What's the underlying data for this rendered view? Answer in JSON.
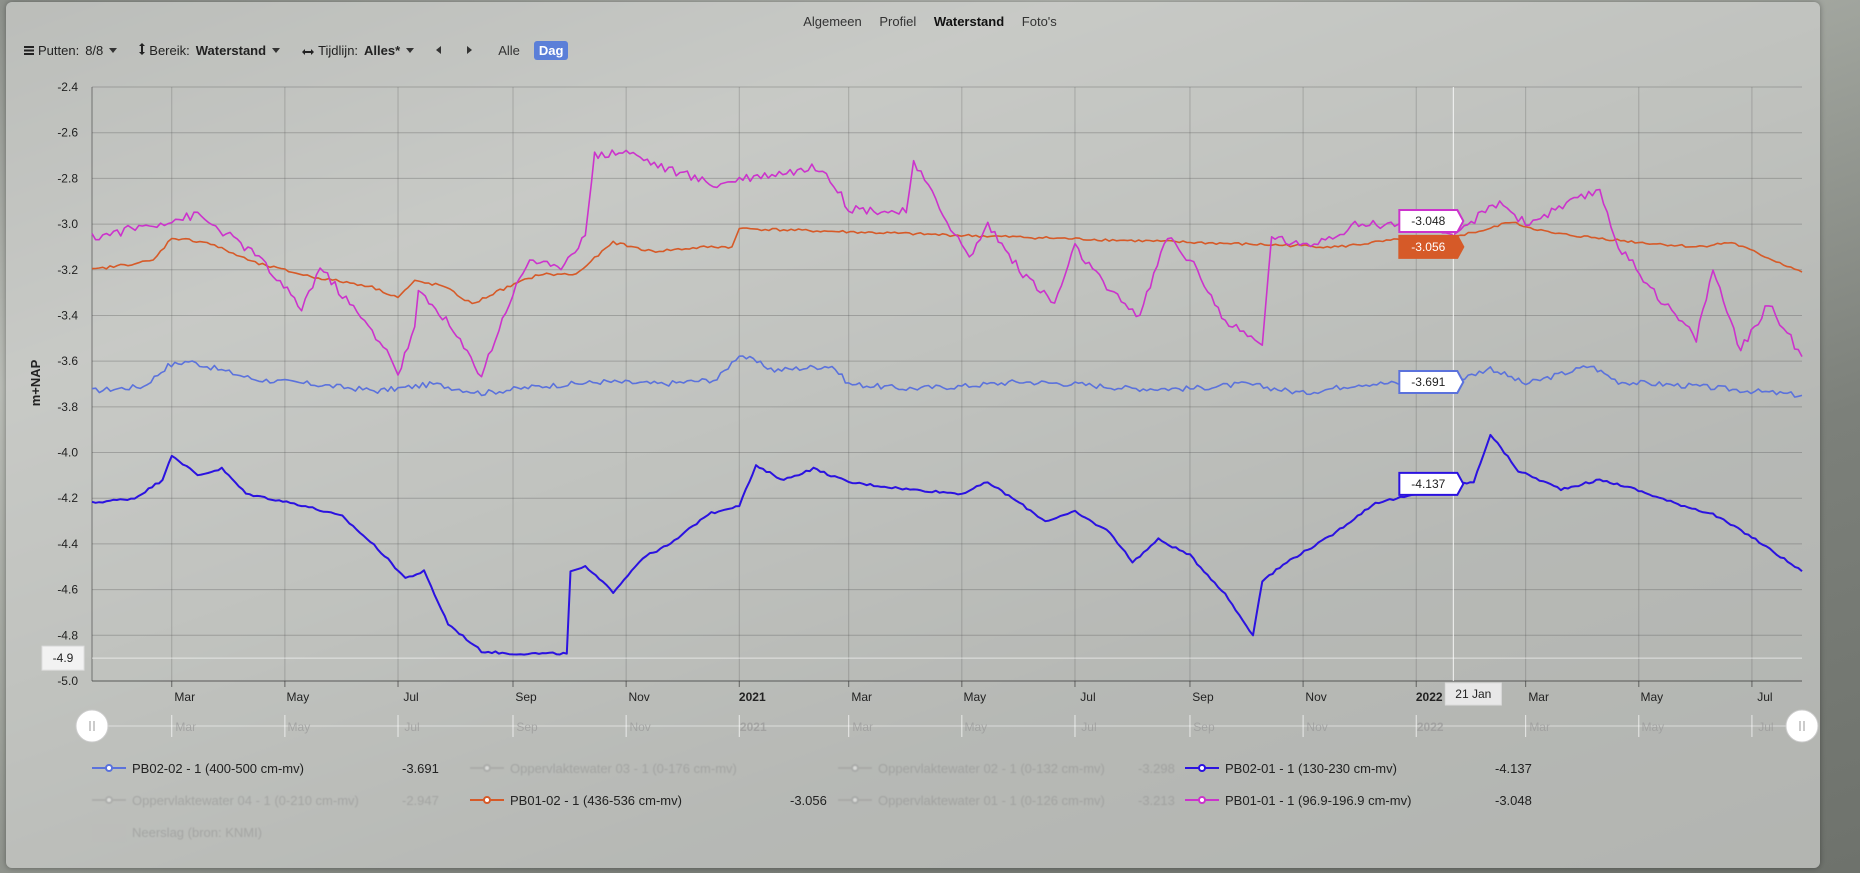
{
  "tabs": [
    {
      "label": "Algemeen",
      "active": false
    },
    {
      "label": "Profiel",
      "active": false
    },
    {
      "label": "Waterstand",
      "active": true
    },
    {
      "label": "Foto's",
      "active": false
    }
  ],
  "toolbar": {
    "putten_label": "Putten:",
    "putten_value": "8/8",
    "bereik_label": "Bereik:",
    "bereik_value": "Waterstand",
    "tijdlijn_label": "Tijdlijn:",
    "tijdlijn_value": "Alles*",
    "alle_label": "Alle",
    "dag_label": "Dag"
  },
  "chart_data": {
    "type": "line",
    "ylabel": "m+NAP",
    "ylim": [
      -5.0,
      -2.4
    ],
    "yticks": [
      -2.4,
      -2.6,
      -2.8,
      -3.0,
      -3.2,
      -3.4,
      -3.6,
      -3.8,
      -4.0,
      -4.2,
      -4.4,
      -4.6,
      -4.8,
      -5.0
    ],
    "x_range": [
      "2020-01-18",
      "2022-07-28"
    ],
    "xticks": [
      {
        "date": "2020-03-01",
        "label": "Mar",
        "bold": false
      },
      {
        "date": "2020-05-01",
        "label": "May",
        "bold": false
      },
      {
        "date": "2020-07-01",
        "label": "Jul",
        "bold": false
      },
      {
        "date": "2020-09-01",
        "label": "Sep",
        "bold": false
      },
      {
        "date": "2020-11-01",
        "label": "Nov",
        "bold": false
      },
      {
        "date": "2021-01-01",
        "label": "2021",
        "bold": true
      },
      {
        "date": "2021-03-01",
        "label": "Mar",
        "bold": false
      },
      {
        "date": "2021-05-01",
        "label": "May",
        "bold": false
      },
      {
        "date": "2021-07-01",
        "label": "Jul",
        "bold": false
      },
      {
        "date": "2021-09-01",
        "label": "Sep",
        "bold": false
      },
      {
        "date": "2021-11-01",
        "label": "Nov",
        "bold": false
      },
      {
        "date": "2022-01-01",
        "label": "2022",
        "bold": true
      },
      {
        "date": "2022-03-01",
        "label": "Mar",
        "bold": false
      },
      {
        "date": "2022-05-01",
        "label": "May",
        "bold": false
      },
      {
        "date": "2022-07-01",
        "label": "Jul",
        "bold": false
      }
    ],
    "crosshair": {
      "date": "2022-01-21",
      "label": "21 Jan",
      "y_label": "-4.9",
      "y_value": -4.9
    },
    "grid": true,
    "series": [
      {
        "name": "PB02-02 - 1 (400-500 cm-mv)",
        "color": "#5b72dc",
        "value_label": "-3.691",
        "hover_value": -3.691,
        "noise": 0.012,
        "points": [
          [
            "2020-01-18",
            -3.73
          ],
          [
            "2020-02-15",
            -3.71
          ],
          [
            "2020-02-28",
            -3.62
          ],
          [
            "2020-03-10",
            -3.6
          ],
          [
            "2020-04-15",
            -3.68
          ],
          [
            "2020-05-15",
            -3.7
          ],
          [
            "2020-06-20",
            -3.73
          ],
          [
            "2020-07-01",
            -3.72
          ],
          [
            "2020-07-20",
            -3.7
          ],
          [
            "2020-08-15",
            -3.74
          ],
          [
            "2020-09-15",
            -3.71
          ],
          [
            "2020-10-20",
            -3.69
          ],
          [
            "2020-11-20",
            -3.7
          ],
          [
            "2020-12-20",
            -3.68
          ],
          [
            "2021-01-01",
            -3.57
          ],
          [
            "2021-01-20",
            -3.64
          ],
          [
            "2021-02-20",
            -3.62
          ],
          [
            "2021-03-01",
            -3.7
          ],
          [
            "2021-04-01",
            -3.72
          ],
          [
            "2021-05-01",
            -3.71
          ],
          [
            "2021-06-01",
            -3.69
          ],
          [
            "2021-07-01",
            -3.7
          ],
          [
            "2021-08-01",
            -3.72
          ],
          [
            "2021-09-01",
            -3.72
          ],
          [
            "2021-10-01",
            -3.7
          ],
          [
            "2021-11-01",
            -3.74
          ],
          [
            "2021-12-01",
            -3.7
          ],
          [
            "2022-01-21",
            -3.691
          ],
          [
            "2022-02-10",
            -3.63
          ],
          [
            "2022-03-01",
            -3.7
          ],
          [
            "2022-04-05",
            -3.62
          ],
          [
            "2022-04-20",
            -3.69
          ],
          [
            "2022-06-01",
            -3.71
          ],
          [
            "2022-07-28",
            -3.75
          ]
        ]
      },
      {
        "name": "PB02-01 - 1 (130-230 cm-mv)",
        "color": "#2b12e0",
        "value_label": "-4.137",
        "hover_value": -4.137,
        "noise": 0.005,
        "points": [
          [
            "2020-01-18",
            -4.22
          ],
          [
            "2020-02-10",
            -4.2
          ],
          [
            "2020-02-25",
            -4.12
          ],
          [
            "2020-03-01",
            -4.01
          ],
          [
            "2020-03-15",
            -4.1
          ],
          [
            "2020-03-28",
            -4.07
          ],
          [
            "2020-04-10",
            -4.18
          ],
          [
            "2020-05-10",
            -4.23
          ],
          [
            "2020-06-01",
            -4.28
          ],
          [
            "2020-06-20",
            -4.42
          ],
          [
            "2020-07-05",
            -4.55
          ],
          [
            "2020-07-15",
            -4.52
          ],
          [
            "2020-07-28",
            -4.75
          ],
          [
            "2020-08-15",
            -4.87
          ],
          [
            "2020-08-30",
            -4.88
          ],
          [
            "2020-09-15",
            -4.88
          ],
          [
            "2020-09-30",
            -4.88
          ],
          [
            "2020-10-02",
            -4.52
          ],
          [
            "2020-10-10",
            -4.5
          ],
          [
            "2020-10-25",
            -4.61
          ],
          [
            "2020-11-10",
            -4.46
          ],
          [
            "2020-11-25",
            -4.4
          ],
          [
            "2020-12-15",
            -4.27
          ],
          [
            "2021-01-01",
            -4.23
          ],
          [
            "2021-01-10",
            -4.06
          ],
          [
            "2021-01-25",
            -4.12
          ],
          [
            "2021-02-10",
            -4.07
          ],
          [
            "2021-03-01",
            -4.13
          ],
          [
            "2021-04-01",
            -4.16
          ],
          [
            "2021-05-01",
            -4.18
          ],
          [
            "2021-05-15",
            -4.13
          ],
          [
            "2021-06-01",
            -4.22
          ],
          [
            "2021-06-15",
            -4.3
          ],
          [
            "2021-07-01",
            -4.26
          ],
          [
            "2021-07-20",
            -4.35
          ],
          [
            "2021-08-01",
            -4.48
          ],
          [
            "2021-08-15",
            -4.38
          ],
          [
            "2021-09-01",
            -4.45
          ],
          [
            "2021-09-20",
            -4.62
          ],
          [
            "2021-10-05",
            -4.8
          ],
          [
            "2021-10-10",
            -4.56
          ],
          [
            "2021-10-25",
            -4.47
          ],
          [
            "2021-11-15",
            -4.37
          ],
          [
            "2021-12-10",
            -4.22
          ],
          [
            "2022-01-10",
            -4.17
          ],
          [
            "2022-01-21",
            -4.137
          ],
          [
            "2022-02-01",
            -4.13
          ],
          [
            "2022-02-10",
            -3.92
          ],
          [
            "2022-02-25",
            -4.08
          ],
          [
            "2022-03-20",
            -4.16
          ],
          [
            "2022-04-10",
            -4.12
          ],
          [
            "2022-04-25",
            -4.15
          ],
          [
            "2022-05-20",
            -4.22
          ],
          [
            "2022-06-10",
            -4.27
          ],
          [
            "2022-07-01",
            -4.37
          ],
          [
            "2022-07-28",
            -4.52
          ]
        ]
      },
      {
        "name": "PB01-02 - 1 (436-536 cm-mv)",
        "color": "#d65a28",
        "value_label": "-3.056",
        "hover_value": -3.056,
        "noise": 0.006,
        "points": [
          [
            "2020-01-18",
            -3.2
          ],
          [
            "2020-02-20",
            -3.16
          ],
          [
            "2020-03-01",
            -3.06
          ],
          [
            "2020-03-20",
            -3.08
          ],
          [
            "2020-04-15",
            -3.17
          ],
          [
            "2020-05-15",
            -3.23
          ],
          [
            "2020-06-15",
            -3.27
          ],
          [
            "2020-07-01",
            -3.32
          ],
          [
            "2020-07-10",
            -3.25
          ],
          [
            "2020-07-25",
            -3.27
          ],
          [
            "2020-08-10",
            -3.35
          ],
          [
            "2020-08-25",
            -3.29
          ],
          [
            "2020-09-15",
            -3.22
          ],
          [
            "2020-10-05",
            -3.22
          ],
          [
            "2020-10-25",
            -3.08
          ],
          [
            "2020-11-15",
            -3.12
          ],
          [
            "2020-12-15",
            -3.1
          ],
          [
            "2020-12-28",
            -3.1
          ],
          [
            "2021-01-01",
            -3.02
          ],
          [
            "2021-01-03",
            -3.02
          ],
          [
            "2021-11-20",
            -3.1
          ],
          [
            "2021-12-10",
            -3.08
          ],
          [
            "2022-01-01",
            -3.06
          ],
          [
            "2022-01-21",
            -3.056
          ],
          [
            "2022-02-10",
            -3.02
          ],
          [
            "2022-02-20",
            -2.99
          ],
          [
            "2022-03-15",
            -3.04
          ],
          [
            "2022-05-01",
            -3.08
          ],
          [
            "2022-06-01",
            -3.1
          ],
          [
            "2022-06-20",
            -3.08
          ],
          [
            "2022-07-28",
            -3.21
          ]
        ]
      },
      {
        "name": "PB01-01 - 1 (96.9-196.9 cm-mv)",
        "color": "#cc33cc",
        "value_label": "-3.048",
        "hover_value": -3.048,
        "noise": 0.02,
        "points": [
          [
            "2020-01-18",
            -3.06
          ],
          [
            "2020-02-20",
            -3.0
          ],
          [
            "2020-03-15",
            -2.96
          ],
          [
            "2020-04-15",
            -3.13
          ],
          [
            "2020-05-10",
            -3.37
          ],
          [
            "2020-05-20",
            -3.19
          ],
          [
            "2020-06-25",
            -3.55
          ],
          [
            "2020-07-01",
            -3.66
          ],
          [
            "2020-07-10",
            -3.45
          ],
          [
            "2020-07-12",
            -3.3
          ],
          [
            "2020-07-25",
            -3.4
          ],
          [
            "2020-08-15",
            -3.66
          ],
          [
            "2020-08-30",
            -3.34
          ],
          [
            "2020-09-10",
            -3.15
          ],
          [
            "2020-09-25",
            -3.2
          ],
          [
            "2020-10-10",
            -3.05
          ],
          [
            "2020-10-15",
            -2.7
          ],
          [
            "2020-11-01",
            -2.68
          ],
          [
            "2020-11-20",
            -2.75
          ],
          [
            "2020-12-20",
            -2.83
          ],
          [
            "2021-01-01",
            -2.8
          ],
          [
            "2021-02-15",
            -2.75
          ],
          [
            "2021-03-01",
            -2.93
          ],
          [
            "2021-04-01",
            -2.95
          ],
          [
            "2021-04-05",
            -2.73
          ],
          [
            "2021-05-05",
            -3.15
          ],
          [
            "2021-05-15",
            -3.0
          ],
          [
            "2021-06-01",
            -3.2
          ],
          [
            "2021-06-20",
            -3.35
          ],
          [
            "2021-07-01",
            -3.1
          ],
          [
            "2021-07-20",
            -3.3
          ],
          [
            "2021-08-05",
            -3.4
          ],
          [
            "2021-08-20",
            -3.05
          ],
          [
            "2021-09-05",
            -3.2
          ],
          [
            "2021-09-20",
            -3.43
          ],
          [
            "2021-10-10",
            -3.53
          ],
          [
            "2021-10-15",
            -3.05
          ],
          [
            "2021-11-01",
            -3.1
          ],
          [
            "2021-12-01",
            -3.0
          ],
          [
            "2022-01-01",
            -3.0
          ],
          [
            "2022-01-21",
            -3.048
          ],
          [
            "2022-02-15",
            -2.9
          ],
          [
            "2022-03-01",
            -3.0
          ],
          [
            "2022-04-10",
            -2.85
          ],
          [
            "2022-04-20",
            -3.1
          ],
          [
            "2022-05-15",
            -3.35
          ],
          [
            "2022-06-01",
            -3.5
          ],
          [
            "2022-06-10",
            -3.2
          ],
          [
            "2022-06-25",
            -3.55
          ],
          [
            "2022-07-10",
            -3.35
          ],
          [
            "2022-07-28",
            -3.58
          ]
        ]
      }
    ],
    "legend": [
      {
        "name": "PB02-02 - 1 (400-500 cm-mv)",
        "value": "-3.691",
        "color": "#5b72dc",
        "faded": false
      },
      {
        "name": "Oppervlaktewater 03 - 1 (0-176 cm-mv)",
        "value": "",
        "color": "#999999",
        "faded": true
      },
      {
        "name": "Oppervlaktewater 02 - 1 (0-132 cm-mv)",
        "value": "-3.298",
        "color": "#999999",
        "faded": true
      },
      {
        "name": "PB02-01 - 1 (130-230 cm-mv)",
        "value": "-4.137",
        "color": "#2b12e0",
        "faded": false
      },
      {
        "name": "Oppervlaktewater 04 - 1 (0-210 cm-mv)",
        "value": "-2.947",
        "color": "#999999",
        "faded": true
      },
      {
        "name": "PB01-02 - 1 (436-536 cm-mv)",
        "value": "-3.056",
        "color": "#d65a28",
        "faded": false
      },
      {
        "name": "Oppervlaktewater 01 - 1 (0-126 cm-mv)",
        "value": "-3.213",
        "color": "#999999",
        "faded": true
      },
      {
        "name": "PB01-01 - 1 (96.9-196.9 cm-mv)",
        "value": "-3.048",
        "color": "#cc33cc",
        "faded": false
      },
      {
        "name": "Neerslag (bron: KNMI)",
        "value": "",
        "color": "#bbbbbb",
        "faded": true
      }
    ]
  }
}
